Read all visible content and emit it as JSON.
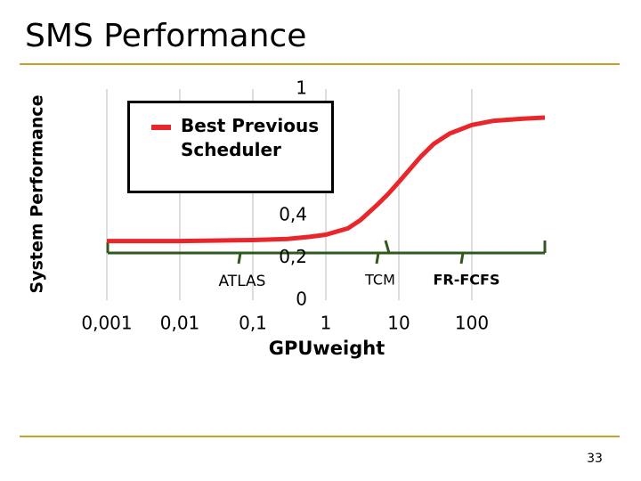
{
  "chart_data": {
    "type": "line",
    "title": "SMS Performance",
    "x_label": "GPUweight",
    "y_label": "System Performance",
    "x": [
      0.001,
      0.01,
      0.1,
      0.3,
      0.6,
      1,
      2,
      3,
      5,
      7,
      10,
      20,
      30,
      50,
      100,
      200,
      500,
      1000
    ],
    "series": [
      {
        "name": "Best Previous Scheduler",
        "color": "#e8262b",
        "values": [
          0.28,
          0.28,
          0.285,
          0.29,
          0.3,
          0.31,
          0.34,
          0.38,
          0.45,
          0.5,
          0.56,
          0.68,
          0.74,
          0.79,
          0.83,
          0.85,
          0.86,
          0.865
        ]
      }
    ],
    "xlim": [
      0.001,
      1000
    ],
    "ylim": [
      0,
      1
    ],
    "log_x": true,
    "grid": true,
    "xticks": [
      {
        "value": 0.001,
        "label": "0,001"
      },
      {
        "value": 0.01,
        "label": "0,01"
      },
      {
        "value": 0.1,
        "label": "0,1"
      },
      1,
      10,
      100
    ],
    "yticks": [
      0,
      {
        "value": 0.2,
        "label": "0,2"
      },
      {
        "value": 0.4,
        "label": "0,4"
      },
      1
    ],
    "annotations": [
      "ATLAS",
      "TCM",
      "FR-FCFS"
    ]
  },
  "page_number": "33"
}
